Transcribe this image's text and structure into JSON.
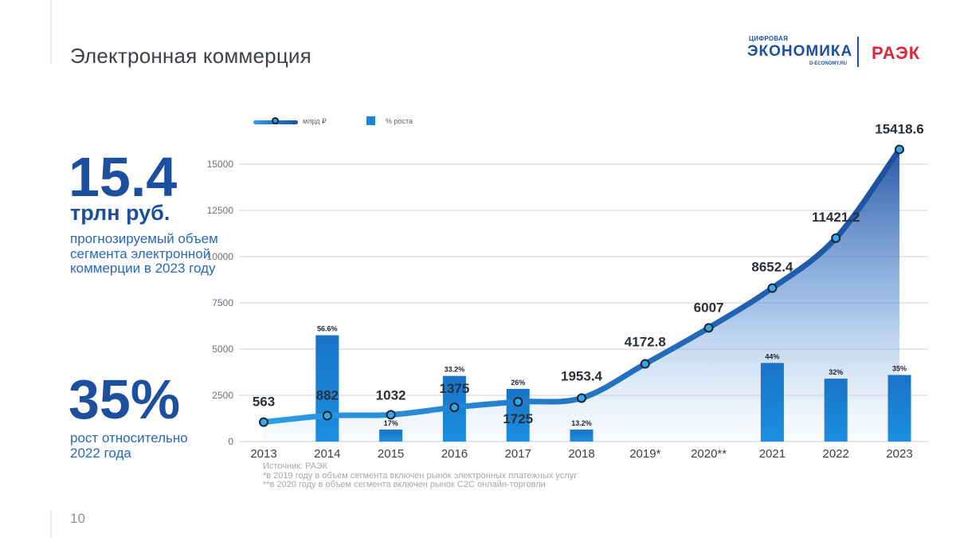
{
  "page": {
    "title": "Электронная коммерция",
    "page_number": "10"
  },
  "logo": {
    "small": "ЦИФРОВАЯ",
    "main": "ЭКОНОМИКА",
    "url": "D-ECONOMY.RU",
    "partner": "РАЭК"
  },
  "kpi": {
    "value1": "15.4",
    "unit1": "трлн руб.",
    "desc1": "прогнозируемый объем сегмента электронной коммерции в 2023 году",
    "value2": "35%",
    "desc2": "рост относительно 2022 года"
  },
  "legend": {
    "line": "млрд ₽",
    "bar": "% роста"
  },
  "notes": {
    "source": "Источник: РАЭК",
    "note1": "*в 2019 году в объем сегмента включен рынок электронных платежных услуг",
    "note2": "**в 2020 году в объем сегмента включен рынок C2C онлайн-торговли"
  },
  "colors": {
    "brand_blue": "#1d4f9f",
    "line_start": "#2a9ee6",
    "bar": "#1b84d4",
    "raek_red": "#e0263d"
  },
  "chart_data": {
    "type": "bar",
    "categories": [
      "2013",
      "2014",
      "2015",
      "2016",
      "2017",
      "2018",
      "2019*",
      "2020**",
      "2021",
      "2022",
      "2023"
    ],
    "ylim": [
      0,
      15000
    ],
    "yticks": [
      0,
      2500,
      5000,
      7500,
      10000,
      12500,
      15000
    ],
    "grid": true,
    "legend_position": "top-left",
    "series": [
      {
        "name": "млрд ₽",
        "type": "line",
        "values": [
          1050,
          1400,
          1450,
          1850,
          2150,
          2350,
          4200,
          6150,
          8300,
          11000,
          15800
        ],
        "labels": [
          "563",
          "882",
          "1032",
          "1375",
          "1725",
          "1953.4",
          "4172.8",
          "6007",
          "8652.4",
          "11421.2",
          "15418.6"
        ]
      },
      {
        "name": "% роста",
        "type": "bar",
        "values": [
          null,
          5750,
          650,
          3550,
          2850,
          650,
          null,
          null,
          4250,
          3400,
          3600
        ],
        "labels": [
          "",
          "56.6%",
          "17%",
          "33.2%",
          "26%",
          "13.2%",
          "",
          "",
          "44%",
          "32%",
          "35%"
        ]
      }
    ]
  }
}
